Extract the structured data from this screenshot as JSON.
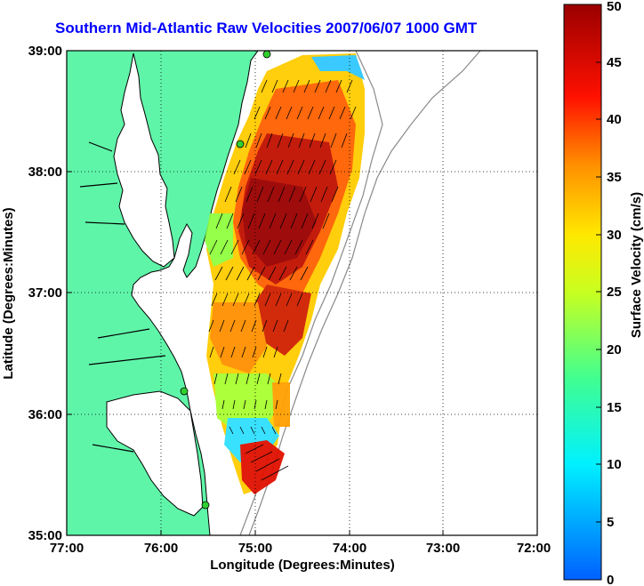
{
  "title": "Southern Mid-Atlantic Raw Velocities 2007/06/07 1000 GMT",
  "map": {
    "xlabel": "Longitude (Degrees:Minutes)",
    "ylabel": "Latitude (Degrees:Minutes)",
    "x_ticks": [
      "77:00",
      "76:00",
      "75:00",
      "74:00",
      "73:00",
      "72:00"
    ],
    "y_ticks": [
      "39:00",
      "38:00",
      "37:00",
      "36:00",
      "35:00"
    ],
    "lon_range": [
      -77,
      -72
    ],
    "lat_range": [
      35,
      39
    ],
    "land_color": "#5ff5a9",
    "coast_color": "#000000"
  },
  "colorbar": {
    "label": "Surface Velocity (cm/s)",
    "ticks": [
      "50",
      "45",
      "40",
      "35",
      "30",
      "25",
      "20",
      "15",
      "10",
      "5",
      "0"
    ],
    "range": [
      0,
      50
    ]
  }
}
